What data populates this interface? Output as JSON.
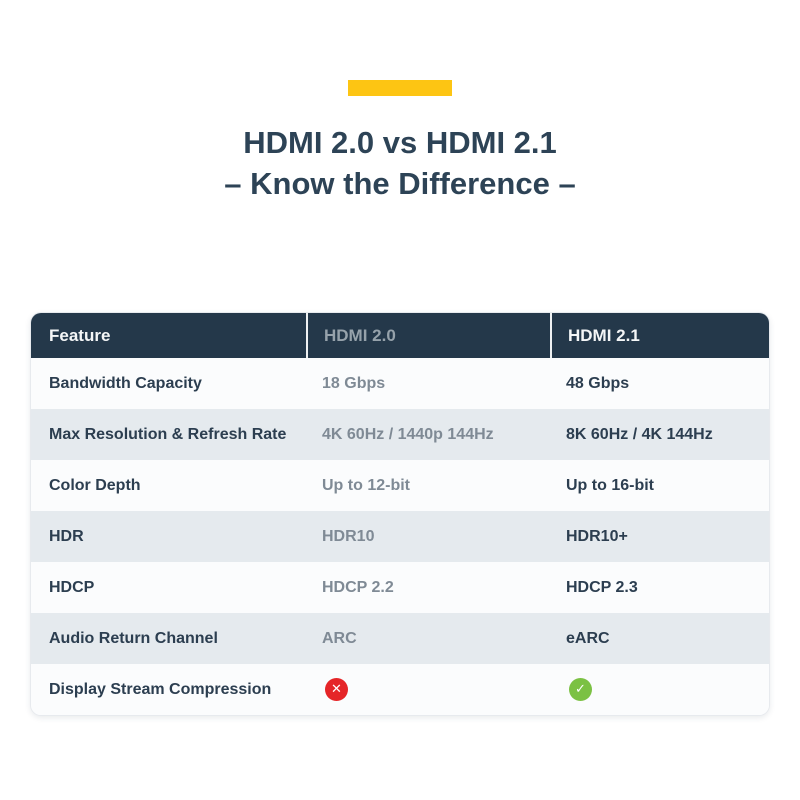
{
  "page": {
    "background": "#ffffff",
    "accent_bar_color": "#fdc513"
  },
  "title": {
    "line1": "HDMI 2.0 vs HDMI 2.1",
    "line2": "– Know the Difference –",
    "color": "#2d4356"
  },
  "table": {
    "header": {
      "col1": "Feature",
      "col2": "HDMI 2.0",
      "col3": "HDMI 2.1",
      "bg_color": "#24384a"
    },
    "rows": [
      {
        "feature": "Bandwidth Capacity",
        "hdmi20": "18 Gbps",
        "hdmi21": "48 Gbps"
      },
      {
        "feature": "Max Resolution & Refresh Rate",
        "hdmi20": "4K 60Hz / 1440p 144Hz",
        "hdmi21": "8K 60Hz / 4K 144Hz"
      },
      {
        "feature": "Color Depth",
        "hdmi20": "Up to 12-bit",
        "hdmi21": "Up to 16-bit"
      },
      {
        "feature": "HDR",
        "hdmi20": "HDR10",
        "hdmi21": "HDR10+"
      },
      {
        "feature": "HDCP",
        "hdmi20": "HDCP 2.2",
        "hdmi21": "HDCP 2.3"
      },
      {
        "feature": "Audio Return Channel",
        "hdmi20": "ARC",
        "hdmi21": "eARC"
      },
      {
        "feature": "Display Stream Compression",
        "hdmi20": "no",
        "hdmi21": "yes"
      }
    ],
    "icons": {
      "cross_glyph": "✕",
      "check_glyph": "✓",
      "cross_bg": "#e52528",
      "check_bg": "#7bc143"
    },
    "row_colors": {
      "odd": "#fbfcfd",
      "even": "#e5eaee"
    }
  },
  "chart_data": {
    "type": "table",
    "title": "HDMI 2.0 vs HDMI 2.1 – Know the Difference –",
    "columns": [
      "Feature",
      "HDMI 2.0",
      "HDMI 2.1"
    ],
    "rows": [
      [
        "Bandwidth Capacity",
        "18 Gbps",
        "48 Gbps"
      ],
      [
        "Max Resolution & Refresh Rate",
        "4K 60Hz / 1440p 144Hz",
        "8K 60Hz / 4K 144Hz"
      ],
      [
        "Color Depth",
        "Up to 12-bit",
        "Up to 16-bit"
      ],
      [
        "HDR",
        "HDR10",
        "HDR10+"
      ],
      [
        "HDCP",
        "HDCP 2.2",
        "HDCP 2.3"
      ],
      [
        "Audio Return Channel",
        "ARC",
        "eARC"
      ],
      [
        "Display Stream Compression",
        "no",
        "yes"
      ]
    ]
  }
}
